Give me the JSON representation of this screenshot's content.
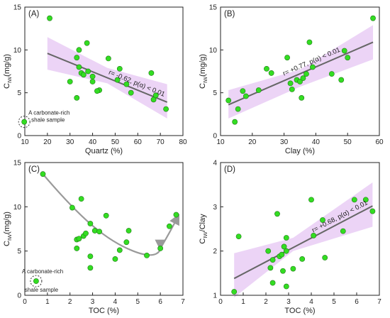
{
  "chart_data": [
    {
      "panel": "(A)",
      "type": "scatter",
      "xlabel": "Quartz (%)",
      "ylabel_main": "C",
      "ylabel_sub": "IW",
      "ylabel_unit": "(mg/g)",
      "xlim": [
        10,
        80
      ],
      "ylim": [
        0,
        15
      ],
      "xticks": [
        10,
        20,
        30,
        40,
        50,
        60,
        70,
        80
      ],
      "yticks": [
        0,
        5,
        10,
        15
      ],
      "points": [
        [
          21,
          13.7
        ],
        [
          33,
          9.1
        ],
        [
          34,
          10.0
        ],
        [
          37.5,
          10.8
        ],
        [
          47,
          9.0
        ],
        [
          30,
          6.3
        ],
        [
          35,
          7.3
        ],
        [
          36,
          7.1
        ],
        [
          34,
          8.0
        ],
        [
          38,
          7.5
        ],
        [
          40,
          6.9
        ],
        [
          40,
          6.3
        ],
        [
          43,
          5.3
        ],
        [
          42,
          5.2
        ],
        [
          52,
          7.8
        ],
        [
          51,
          6.5
        ],
        [
          55,
          6.0
        ],
        [
          57,
          5.0
        ],
        [
          66,
          7.3
        ],
        [
          67,
          4.2
        ],
        [
          68,
          4.7
        ],
        [
          72.5,
          3.1
        ],
        [
          33,
          4.4
        ]
      ],
      "fit": {
        "x": [
          20,
          73
        ],
        "y": [
          9.6,
          3.9
        ]
      },
      "band": {
        "x": [
          20,
          46.5,
          73
        ],
        "upper": [
          11.5,
          7.9,
          6.0
        ],
        "lower": [
          7.7,
          6.1,
          2.0
        ]
      },
      "annotation": "r= -0.62, p(α) < 0.01",
      "legend_label_1": "A carbonate-rich",
      "legend_label_2": "shale sample",
      "outlier_point": [
        11,
        1.6
      ]
    },
    {
      "panel": "(B)",
      "type": "scatter",
      "xlabel": "Clay (%)",
      "ylabel_main": "C",
      "ylabel_sub": "IW",
      "ylabel_unit": "(mg/g)",
      "xlim": [
        10,
        60
      ],
      "ylim": [
        0,
        15
      ],
      "xticks": [
        10,
        20,
        30,
        40,
        50,
        60
      ],
      "yticks": [
        0,
        5,
        10,
        15
      ],
      "points": [
        [
          12.5,
          4.1
        ],
        [
          14.5,
          1.6
        ],
        [
          15.5,
          3.1
        ],
        [
          17,
          5.2
        ],
        [
          18,
          4.6
        ],
        [
          22,
          5.3
        ],
        [
          24.5,
          7.8
        ],
        [
          26,
          7.3
        ],
        [
          31,
          9.1
        ],
        [
          32,
          6.1
        ],
        [
          32.5,
          5.4
        ],
        [
          34,
          6.5
        ],
        [
          35,
          6.3
        ],
        [
          35.5,
          4.4
        ],
        [
          36,
          6.7
        ],
        [
          37,
          7.2
        ],
        [
          38,
          10.9
        ],
        [
          39,
          8.0
        ],
        [
          45,
          7.2
        ],
        [
          48,
          6.5
        ],
        [
          49,
          9.9
        ],
        [
          50,
          9.1
        ],
        [
          58,
          13.7
        ]
      ],
      "fit": {
        "x": [
          12.5,
          58
        ],
        "y": [
          3.6,
          10.9
        ]
      },
      "band": {
        "x": [
          12.5,
          35,
          58
        ],
        "upper": [
          5.3,
          7.7,
          12.9
        ],
        "lower": [
          2.0,
          5.7,
          8.9
        ]
      },
      "annotation": "r= +0.77, p(α) < 0.01"
    },
    {
      "panel": "(C)",
      "type": "scatter",
      "xlabel": "TOC (%)",
      "ylabel_main": "C",
      "ylabel_sub": "IW",
      "ylabel_unit": "(mg/g)",
      "xlim": [
        0,
        7
      ],
      "ylim": [
        0,
        15
      ],
      "xticks": [
        0,
        1,
        2,
        3,
        4,
        5,
        6,
        7
      ],
      "yticks": [
        0,
        5,
        10,
        15
      ],
      "points": [
        [
          0.8,
          13.7
        ],
        [
          2.1,
          9.9
        ],
        [
          2.5,
          10.9
        ],
        [
          2.9,
          8.1
        ],
        [
          3.6,
          9.0
        ],
        [
          2.3,
          6.3
        ],
        [
          2.4,
          6.4
        ],
        [
          2.6,
          6.7
        ],
        [
          2.7,
          7.0
        ],
        [
          3.1,
          7.3
        ],
        [
          3.3,
          7.2
        ],
        [
          2.3,
          5.3
        ],
        [
          2.9,
          4.4
        ],
        [
          2.9,
          3.1
        ],
        [
          4.0,
          4.1
        ],
        [
          4.2,
          5.1
        ],
        [
          4.5,
          6.0
        ],
        [
          4.6,
          7.3
        ],
        [
          5.4,
          4.5
        ],
        [
          6.0,
          5.3
        ],
        [
          6.4,
          7.8
        ],
        [
          6.7,
          9.1
        ]
      ],
      "trend_curve": [
        [
          0.8,
          13.7
        ],
        [
          2.5,
          8.6
        ],
        [
          3.6,
          6.2
        ],
        [
          4.8,
          5.0
        ],
        [
          6.0,
          5.3
        ]
      ],
      "trend_rise": [
        [
          6.0,
          5.3
        ],
        [
          6.4,
          7.0
        ],
        [
          6.8,
          9.0
        ]
      ],
      "legend_label_1": "A carbonate-rich",
      "legend_label_2": "shale sample",
      "outlier_point": [
        0.5,
        1.6
      ]
    },
    {
      "panel": "(D)",
      "type": "scatter",
      "xlabel": "TOC (%)",
      "ylabel_main": "C",
      "ylabel_sub": "IW",
      "ylabel_unit": "/Clay",
      "xlim": [
        0,
        7
      ],
      "ylim": [
        1,
        4
      ],
      "xticks": [
        0,
        1,
        2,
        3,
        4,
        5,
        6,
        7
      ],
      "yticks": [
        1,
        2,
        3,
        4
      ],
      "points": [
        [
          0.6,
          1.08
        ],
        [
          0.8,
          2.33
        ],
        [
          2.1,
          2.0
        ],
        [
          2.2,
          1.62
        ],
        [
          2.3,
          1.28
        ],
        [
          2.3,
          1.8
        ],
        [
          2.5,
          2.84
        ],
        [
          2.6,
          1.88
        ],
        [
          2.7,
          1.92
        ],
        [
          2.75,
          1.55
        ],
        [
          2.8,
          2.1
        ],
        [
          2.9,
          1.2
        ],
        [
          2.9,
          2.3
        ],
        [
          2.9,
          2.0
        ],
        [
          3.2,
          1.6
        ],
        [
          3.6,
          1.82
        ],
        [
          4.0,
          3.16
        ],
        [
          4.1,
          2.35
        ],
        [
          4.5,
          2.7
        ],
        [
          4.6,
          1.85
        ],
        [
          5.4,
          2.45
        ],
        [
          5.9,
          3.16
        ],
        [
          6.4,
          3.16
        ],
        [
          6.7,
          2.9
        ]
      ],
      "fit": {
        "x": [
          0.6,
          6.7
        ],
        "y": [
          1.38,
          3.02
        ]
      },
      "band": {
        "x": [
          0.6,
          3.2,
          6.7
        ],
        "upper": [
          1.95,
          2.3,
          3.55
        ],
        "lower": [
          0.95,
          2.0,
          2.55
        ]
      },
      "annotation": "r= +0.68, p(α) < 0.01"
    }
  ]
}
